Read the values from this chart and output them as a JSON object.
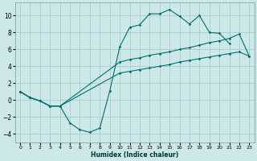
{
  "xlabel": "Humidex (Indice chaleur)",
  "background_color": "#cce8e8",
  "grid_color": "#aacccc",
  "line_color": "#007070",
  "xlim": [
    -0.5,
    23.5
  ],
  "ylim": [
    -5,
    11.5
  ],
  "xticks": [
    0,
    1,
    2,
    3,
    4,
    5,
    6,
    7,
    8,
    9,
    10,
    11,
    12,
    13,
    14,
    15,
    16,
    17,
    18,
    19,
    20,
    21,
    22,
    23
  ],
  "yticks": [
    -4,
    -2,
    0,
    2,
    4,
    6,
    8,
    10
  ],
  "line1_x": [
    0,
    1,
    2,
    3,
    4,
    5,
    6,
    7,
    8,
    9,
    10,
    11,
    12,
    13,
    14,
    15,
    16,
    17,
    18,
    19,
    20,
    21
  ],
  "line1_y": [
    1.0,
    0.3,
    -0.1,
    -0.7,
    -0.7,
    -2.7,
    -3.5,
    -3.8,
    -3.3,
    1.1,
    6.3,
    8.6,
    8.9,
    10.2,
    10.2,
    10.7,
    9.9,
    9.0,
    10.0,
    8.0,
    7.9,
    6.7
  ],
  "line2_x": [
    0,
    1,
    2,
    3,
    4,
    10,
    11,
    12,
    13,
    14,
    15,
    16,
    17,
    18,
    19,
    20,
    21,
    22,
    23
  ],
  "line2_y": [
    1.0,
    0.3,
    -0.1,
    -0.7,
    -0.7,
    4.5,
    4.8,
    5.0,
    5.3,
    5.5,
    5.7,
    6.0,
    6.2,
    6.5,
    6.8,
    7.0,
    7.3,
    7.8,
    5.2
  ],
  "line3_x": [
    0,
    1,
    2,
    3,
    4,
    10,
    11,
    12,
    13,
    14,
    15,
    16,
    17,
    18,
    19,
    20,
    21,
    22,
    23
  ],
  "line3_y": [
    1.0,
    0.3,
    -0.1,
    -0.7,
    -0.7,
    3.2,
    3.4,
    3.6,
    3.8,
    4.0,
    4.2,
    4.5,
    4.7,
    4.9,
    5.1,
    5.3,
    5.5,
    5.7,
    5.2
  ]
}
